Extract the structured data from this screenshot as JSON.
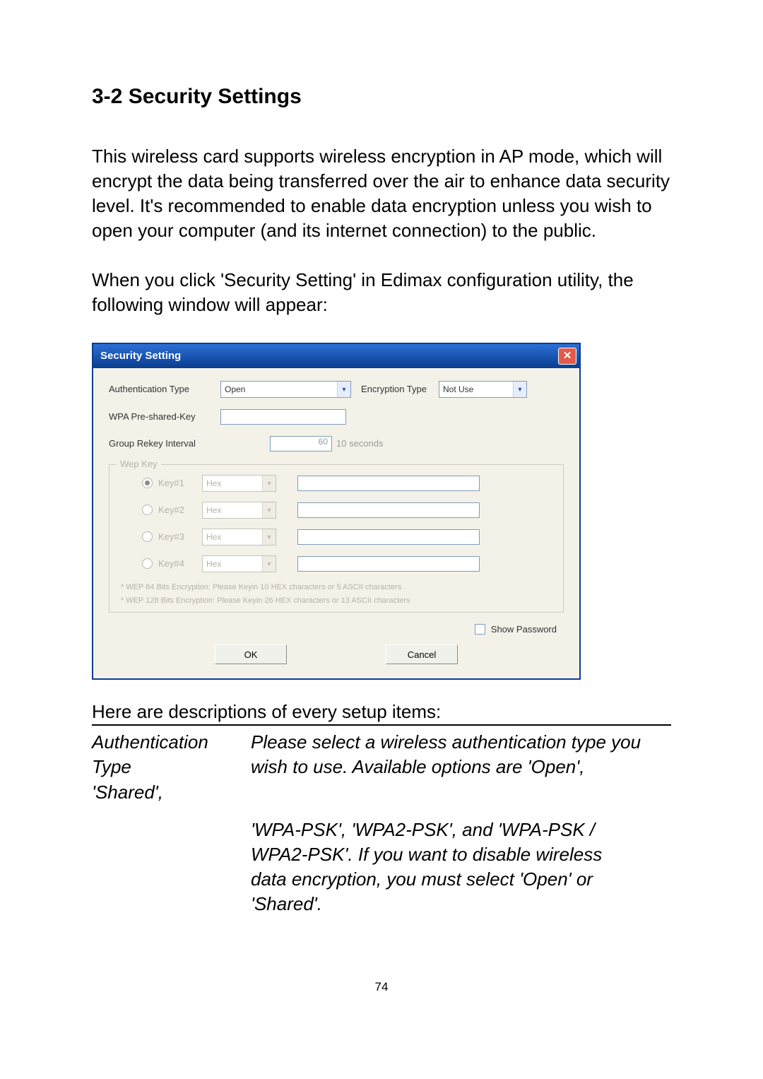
{
  "heading": "3-2 Security Settings",
  "para1": "This wireless card supports wireless encryption in AP mode, which will encrypt the data being transferred over the air to enhance data security level. It's recommended to enable data encryption unless you wish to open your computer (and its internet connection) to the public.",
  "para2": "When you click 'Security Setting' in Edimax configuration utility, the following window will appear:",
  "dialog": {
    "title": "Security Setting",
    "auth_label": "Authentication Type",
    "auth_value": "Open",
    "enc_label": "Encryption Type",
    "enc_value": "Not Use",
    "psk_label": "WPA Pre-shared-Key",
    "rekey_label": "Group Rekey Interval",
    "rekey_value": "60",
    "rekey_unit": "10 seconds",
    "wep_legend": "Wep Key",
    "keys": [
      {
        "label": "Key#1",
        "format": "Hex",
        "selected": true
      },
      {
        "label": "Key#2",
        "format": "Hex",
        "selected": false
      },
      {
        "label": "Key#3",
        "format": "Hex",
        "selected": false
      },
      {
        "label": "Key#4",
        "format": "Hex",
        "selected": false
      }
    ],
    "note1": "* WEP 64 Bits Encryption:  Please Keyin 10 HEX characters or 5 ASCII characters",
    "note2": "* WEP 128 Bits Encryption:  Please Keyin 26 HEX characters or 13 ASCII characters",
    "show_pw": "Show Password",
    "ok": "OK",
    "cancel": "Cancel"
  },
  "desc_intro": "Here are descriptions of every setup items:",
  "desc": {
    "col1_line1": "Authentication",
    "col1_line2": "Type",
    "col1_line3": "'Shared',",
    "col2_line1": "Please select a wireless authentication type you",
    "col2_line2": "wish to use. Available options are 'Open',",
    "col2b_line1": "'WPA-PSK', 'WPA2-PSK', and 'WPA-PSK /",
    "col2b_line2": "WPA2-PSK'. If you want to disable wireless",
    "col2b_line3": "data encryption, you must select 'Open' or",
    "col2b_line4": "'Shared'."
  },
  "page_num": "74",
  "colors": {
    "titlebar_start": "#2b6fd6",
    "titlebar_end": "#0a3d8f",
    "dialog_bg": "#f4f1e9",
    "close_btn": "#e25a4a",
    "disabled_text": "#b6b2a6"
  }
}
